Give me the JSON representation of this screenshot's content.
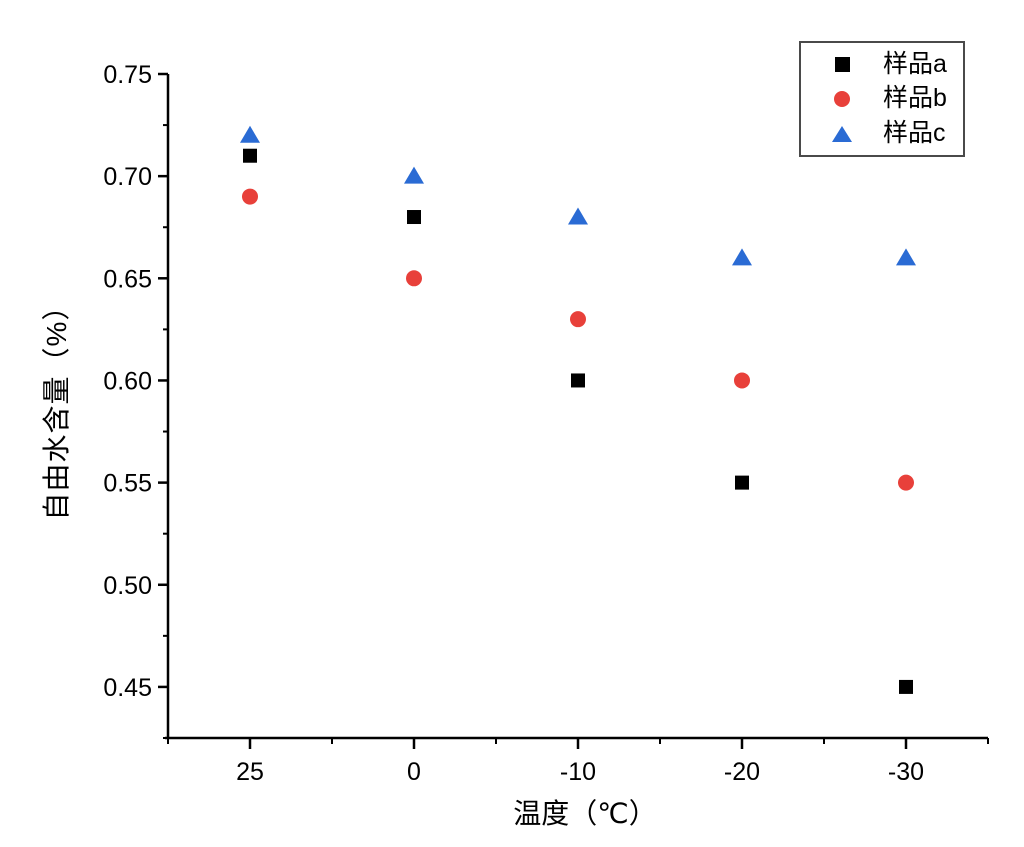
{
  "chart_data": {
    "type": "scatter",
    "title": "",
    "xlabel": "温度（℃）",
    "ylabel": "自由水含量（%）",
    "categories": [
      "25",
      "0",
      "-10",
      "-20",
      "-30"
    ],
    "series": [
      {
        "name": "样品a",
        "marker": "square",
        "color": "#000000",
        "values": [
          0.71,
          0.68,
          0.6,
          0.55,
          0.45
        ]
      },
      {
        "name": "样品b",
        "marker": "circle",
        "color": "#e8403a",
        "values": [
          0.69,
          0.65,
          0.63,
          0.6,
          0.55
        ]
      },
      {
        "name": "样品c",
        "marker": "triangle",
        "color": "#2a6bd4",
        "values": [
          0.72,
          0.7,
          0.68,
          0.66,
          0.66
        ]
      }
    ],
    "ylim": [
      0.425,
      0.75
    ],
    "yticks": [
      0.45,
      0.5,
      0.55,
      0.6,
      0.65,
      0.7,
      0.75
    ],
    "ytick_labels": [
      "0.45",
      "0.50",
      "0.55",
      "0.60",
      "0.65",
      "0.70",
      "0.75"
    ],
    "grid": false,
    "legend_position": "top-right",
    "axis_color": "#000000",
    "background_color": "#ffffff"
  }
}
